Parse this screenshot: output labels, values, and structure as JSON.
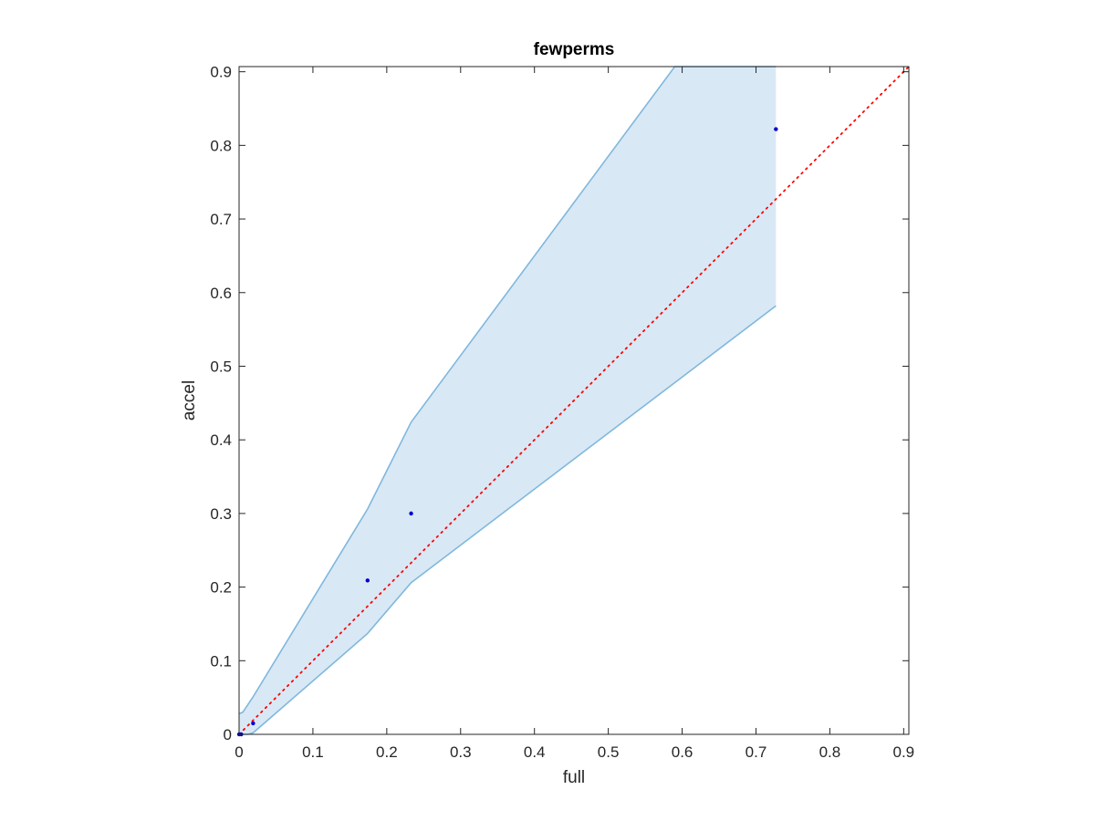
{
  "chart_data": {
    "type": "scatter",
    "title": "fewperms",
    "xlabel": "full",
    "ylabel": "accel",
    "xlim": [
      0,
      0.907
    ],
    "ylim": [
      0,
      0.907
    ],
    "xticks": [
      0,
      0.1,
      0.2,
      0.3,
      0.4,
      0.5,
      0.6,
      0.7,
      0.8,
      0.9
    ],
    "yticks": [
      0,
      0.1,
      0.2,
      0.3,
      0.4,
      0.5,
      0.6,
      0.7,
      0.8,
      0.9
    ],
    "tick_labels": [
      "0",
      "0.1",
      "0.2",
      "0.3",
      "0.4",
      "0.5",
      "0.6",
      "0.7",
      "0.8",
      "0.9"
    ],
    "grid": false,
    "points": {
      "color": "#0000cc",
      "x": [
        0,
        0.003,
        0.019,
        0.174,
        0.233,
        0.727
      ],
      "y": [
        0,
        0,
        0.015,
        0.209,
        0.3,
        0.822
      ]
    },
    "band": {
      "color": "#7fb8dd",
      "fill": "#d9e8f5",
      "upper": {
        "x": [
          0,
          0.005,
          0.019,
          0.174,
          0.233,
          0.59,
          0.727
        ],
        "y": [
          0.028,
          0.03,
          0.051,
          0.306,
          0.424,
          0.907,
          0.907
        ]
      },
      "lower": {
        "x": [
          0,
          0.012,
          0.019,
          0.174,
          0.233,
          0.727
        ],
        "y": [
          0,
          0,
          0.002,
          0.137,
          0.206,
          0.582
        ]
      }
    },
    "reference_line": {
      "style": "dotted",
      "color": "#ff0000",
      "x": [
        0,
        0.907
      ],
      "y": [
        0,
        0.907
      ]
    }
  }
}
